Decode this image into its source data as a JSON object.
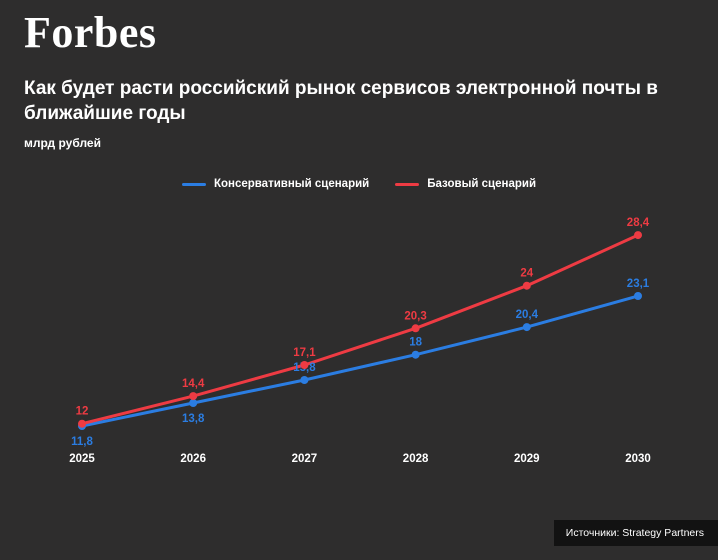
{
  "brand": "Forbes",
  "header": {
    "title": "Как будет расти российский рынок сервисов электронной почты в ближайшие годы",
    "units": "млрд рублей"
  },
  "chart_data": {
    "type": "line",
    "title": "Как будет расти российский рынок сервисов электронной почты в ближайшие годы",
    "ylabel": "млрд рублей",
    "categories": [
      "2025",
      "2026",
      "2027",
      "2028",
      "2029",
      "2030"
    ],
    "series": [
      {
        "name": "Консервативный сценарий",
        "color": "#2b7de2",
        "values": [
          11.8,
          13.8,
          15.8,
          18,
          20.4,
          23.1
        ],
        "labels": [
          "11,8",
          "13,8",
          "15,8",
          "18",
          "20,4",
          "23,1"
        ],
        "label_position": [
          "below",
          "below",
          "above",
          "above",
          "above",
          "above"
        ]
      },
      {
        "name": "Базовый сценарий",
        "color": "#ee3b43",
        "values": [
          12,
          14.4,
          17.1,
          20.3,
          24,
          28.4
        ],
        "labels": [
          "12",
          "14,4",
          "17,1",
          "20,3",
          "24",
          "28,4"
        ],
        "label_position": [
          "above",
          "above",
          "above",
          "above",
          "above",
          "above"
        ]
      }
    ],
    "ylim": [
      11,
      30
    ],
    "grid": false,
    "legend_position": "top-center"
  },
  "footer": {
    "source": "Источники: Strategy Partners"
  }
}
